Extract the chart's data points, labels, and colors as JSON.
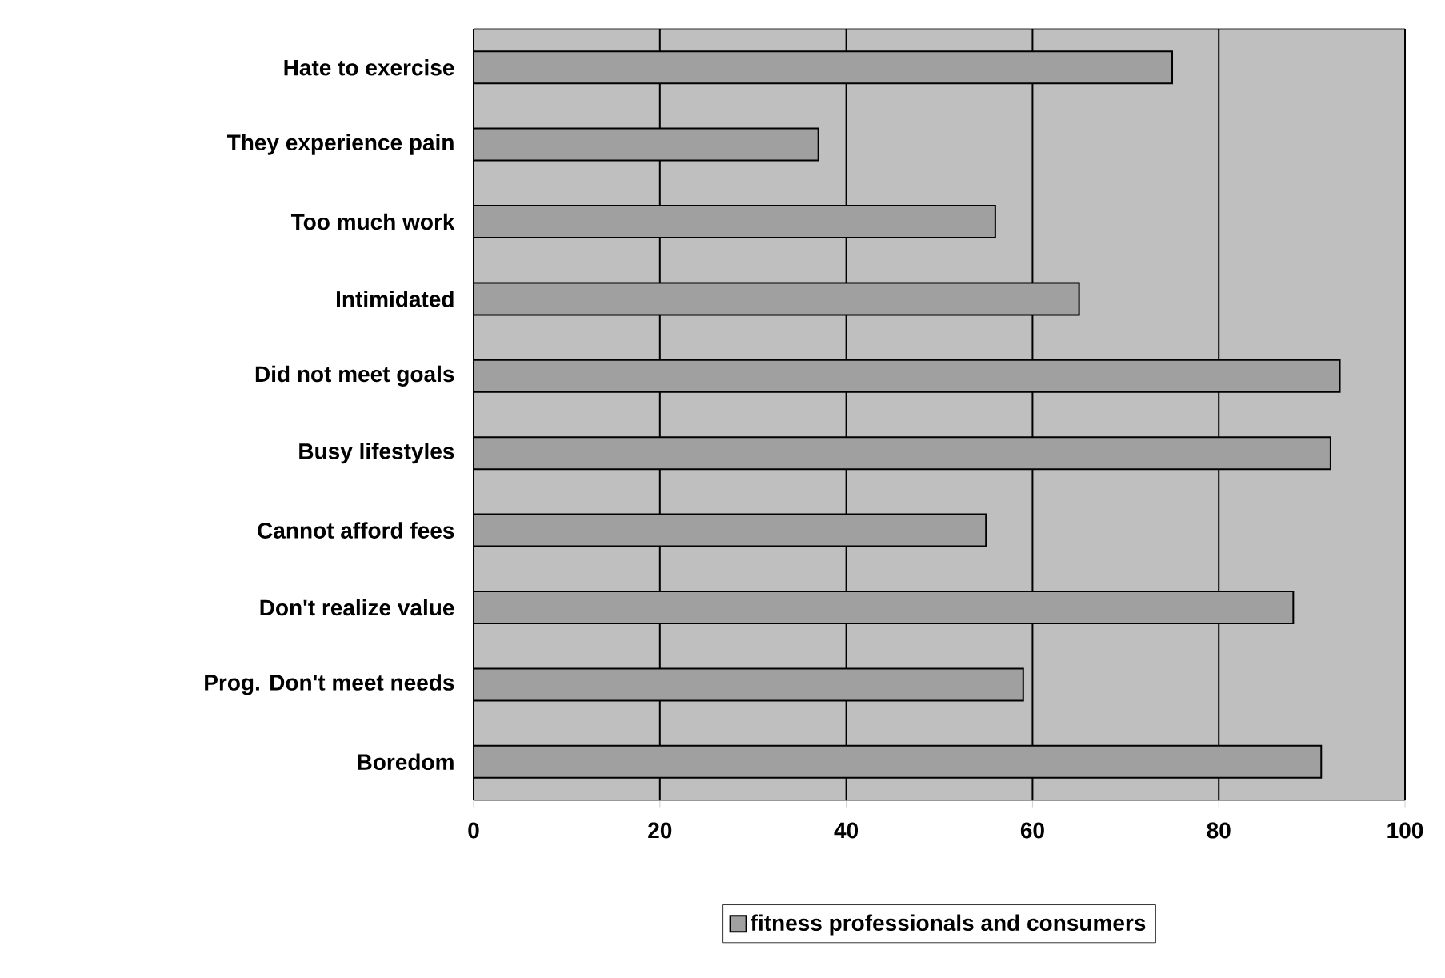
{
  "chart_data": {
    "type": "bar",
    "orientation": "horizontal",
    "categories": [
      "Hate to exercise",
      "They experience pain",
      "Too much work",
      "Intimidated",
      "Did not meet goals",
      "Busy lifestyles",
      "Cannot afford fees",
      "Don't realize value",
      "Prog. Don't meet needs",
      "Boredom"
    ],
    "series": [
      {
        "name": "fitness professionals and consumers",
        "color": "#a0a0a0",
        "values": [
          75,
          37,
          56,
          65,
          93,
          92,
          55,
          88,
          59,
          91
        ]
      }
    ],
    "xlim": [
      0,
      100
    ],
    "xticks": [
      0,
      20,
      40,
      60,
      80,
      100
    ],
    "grid": "x",
    "legend": "bottom"
  }
}
